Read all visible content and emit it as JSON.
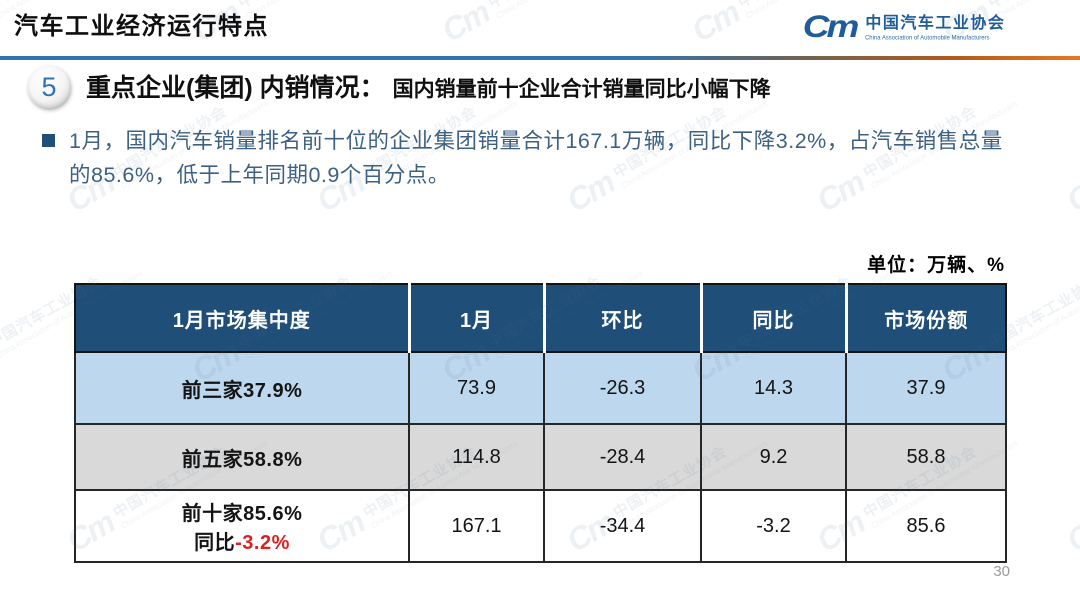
{
  "slide": {
    "title": "汽车工业经济运行特点",
    "page_number": "30",
    "unit_label": "单位：万辆、%"
  },
  "logo": {
    "glyph": "Cm",
    "name_cn": "中国汽车工业协会",
    "name_en": "China Association of Automobile Manufacturers"
  },
  "watermark": {
    "glyph": "Cm",
    "text_cn": "中国汽车工业协会",
    "text_en": "China Association of Automobile Manufacturers"
  },
  "section": {
    "number": "5",
    "heading": "重点企业(集团) 内销情况：",
    "subheading": "国内销量前十企业合计销量同比小幅下降"
  },
  "bullet": {
    "lines": [
      "1月，国内汽车销量排名前十位的企业集团销量合计167.1万辆，同比下降3.2%，占汽车销售总量",
      "的85.6%，低于上年同期0.9个百分点。"
    ]
  },
  "table": {
    "headers": [
      "1月市场集中度",
      "1月",
      "环比",
      "同比",
      "市场份额"
    ],
    "rows": [
      {
        "label": "前三家37.9%",
        "values": [
          "73.9",
          "-26.3",
          "14.3",
          "37.9"
        ]
      },
      {
        "label": "前五家58.8%",
        "values": [
          "114.8",
          "-28.4",
          "9.2",
          "58.8"
        ]
      },
      {
        "label": "前十家85.6%",
        "sub_label": "同比",
        "sub_label_highlight": "-3.2%",
        "values": [
          "167.1",
          "-34.4",
          "-3.2",
          "85.6"
        ]
      }
    ]
  },
  "colors": {
    "header_bg": "#1f4e79",
    "row_blue": "#bdd7ee",
    "row_gray": "#d9d9d9",
    "accent_blue": "#2e74b5",
    "accent_orange": "#e87722",
    "bullet_text": "#3d6183",
    "highlight_red": "#e01f1f",
    "logo_blue": "#1f5c99"
  }
}
